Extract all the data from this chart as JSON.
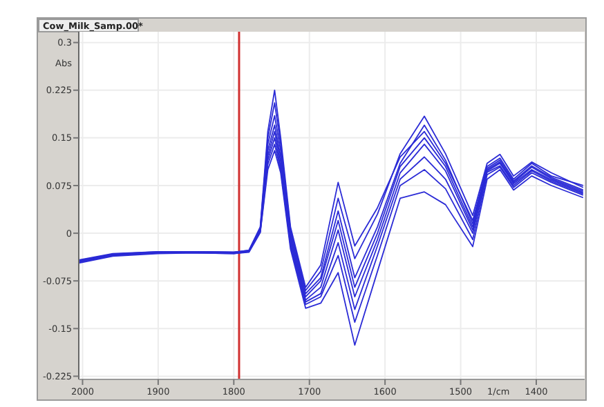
{
  "chart_data": {
    "type": "line",
    "title": "Cow_Milk_Samp.00*",
    "xlabel": "1/cm",
    "ylabel": "Abs",
    "x": [
      2005,
      1960,
      1900,
      1850,
      1800,
      1780,
      1765,
      1755,
      1746,
      1738,
      1725,
      1705,
      1685,
      1662,
      1640,
      1610,
      1580,
      1548,
      1520,
      1484,
      1465,
      1448,
      1430,
      1406,
      1380,
      1338
    ],
    "series": [
      {
        "color": "#2b2bd6",
        "values": [
          -0.042,
          -0.032,
          -0.029,
          -0.029,
          -0.03,
          -0.027,
          0.01,
          0.16,
          0.225,
          0.15,
          0.01,
          -0.085,
          -0.05,
          0.08,
          -0.02,
          0.04,
          0.12,
          0.16,
          0.11,
          0.02,
          0.105,
          0.118,
          0.085,
          0.11,
          0.09,
          0.075
        ]
      },
      {
        "color": "#2b2bd6",
        "values": [
          -0.043,
          -0.033,
          -0.029,
          -0.029,
          -0.03,
          -0.027,
          0.008,
          0.15,
          0.205,
          0.14,
          0.005,
          -0.09,
          -0.06,
          0.055,
          -0.04,
          0.03,
          0.125,
          0.184,
          0.125,
          0.028,
          0.11,
          0.124,
          0.09,
          0.112,
          0.095,
          0.072
        ]
      },
      {
        "color": "#2b2bd6",
        "values": [
          -0.044,
          -0.033,
          -0.03,
          -0.029,
          -0.03,
          -0.028,
          0.006,
          0.14,
          0.185,
          0.13,
          0.0,
          -0.095,
          -0.07,
          0.035,
          -0.07,
          0.01,
          0.11,
          0.17,
          0.115,
          0.015,
          0.102,
          0.115,
          0.082,
          0.106,
          0.088,
          0.068
        ]
      },
      {
        "color": "#2b2bd6",
        "values": [
          -0.044,
          -0.034,
          -0.03,
          -0.03,
          -0.031,
          -0.028,
          0.005,
          0.13,
          0.17,
          0.12,
          -0.005,
          -0.1,
          -0.075,
          0.02,
          -0.085,
          0.0,
          0.105,
          0.15,
          0.105,
          0.01,
          0.1,
          0.112,
          0.08,
          0.104,
          0.086,
          0.066
        ]
      },
      {
        "color": "#2b2bd6",
        "values": [
          -0.045,
          -0.034,
          -0.03,
          -0.03,
          -0.031,
          -0.028,
          0.004,
          0.122,
          0.16,
          0.112,
          -0.01,
          -0.105,
          -0.085,
          0.005,
          -0.1,
          -0.01,
          0.095,
          0.14,
          0.098,
          0.005,
          0.098,
          0.11,
          0.078,
          0.1,
          0.084,
          0.064
        ]
      },
      {
        "color": "#2b2bd6",
        "values": [
          -0.045,
          -0.035,
          -0.031,
          -0.03,
          -0.031,
          -0.029,
          0.003,
          0.115,
          0.15,
          0.105,
          -0.015,
          -0.108,
          -0.095,
          -0.015,
          -0.12,
          -0.02,
          0.085,
          0.12,
          0.085,
          0.0,
          0.096,
          0.106,
          0.075,
          0.098,
          0.082,
          0.062
        ]
      },
      {
        "color": "#2b2bd6",
        "values": [
          -0.046,
          -0.035,
          -0.031,
          -0.031,
          -0.032,
          -0.029,
          0.002,
          0.108,
          0.14,
          0.1,
          -0.02,
          -0.112,
          -0.1,
          -0.035,
          -0.14,
          -0.035,
          0.075,
          0.1,
          0.07,
          -0.01,
          0.092,
          0.104,
          0.072,
          0.095,
          0.08,
          0.06
        ]
      },
      {
        "color": "#2b2bd6",
        "values": [
          -0.047,
          -0.036,
          -0.032,
          -0.031,
          -0.032,
          -0.03,
          0.001,
          0.1,
          0.13,
          0.095,
          -0.025,
          -0.118,
          -0.11,
          -0.062,
          -0.176,
          -0.06,
          0.055,
          0.065,
          0.045,
          -0.021,
          0.085,
          0.1,
          0.068,
          0.09,
          0.075,
          0.056
        ]
      }
    ],
    "xlim": [
      2005,
      1336
    ],
    "xticks": [
      2000,
      1900,
      1800,
      1700,
      1600,
      1500,
      1400
    ],
    "ylim": [
      -0.23,
      0.317
    ],
    "yticks": [
      -0.225,
      -0.15,
      -0.075,
      0,
      0.075,
      0.15,
      0.225,
      0.3
    ],
    "grid": true,
    "ref_lines": [
      {
        "axis": "x",
        "value": 1793,
        "color": "#d03030"
      }
    ]
  }
}
